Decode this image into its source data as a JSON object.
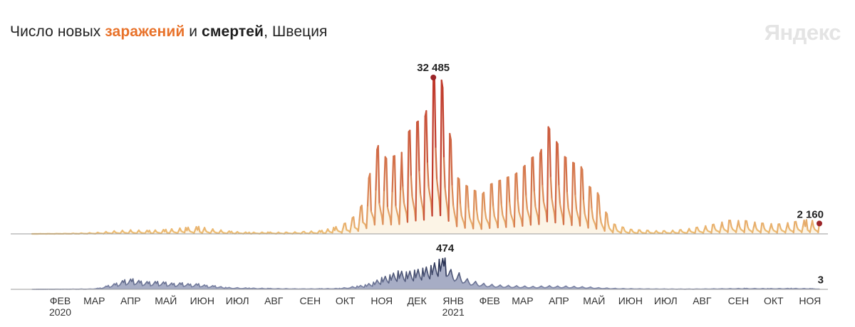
{
  "title": {
    "prefix": "Число новых ",
    "infections_word": "заражений",
    "middle": " и ",
    "deaths_word": "смертей",
    "suffix": ", Швеция"
  },
  "brand": "Яндекс",
  "colors": {
    "infections_low": "#eec277",
    "infections_high": "#c0392b",
    "deaths_low": "#8c94b5",
    "deaths_high": "#273052",
    "marker": "#9b2428",
    "baseline": "#9a9a9a",
    "axis_text": "#333333"
  },
  "chart_data": [
    {
      "type": "area",
      "title": "",
      "series": [
        {
          "name": "заражений",
          "weekly_peaks": [
            {
              "date": "2020-02-05",
              "value": 30
            },
            {
              "date": "2020-02-19",
              "value": 60
            },
            {
              "date": "2020-03-04",
              "value": 150
            },
            {
              "date": "2020-03-18",
              "value": 300
            },
            {
              "date": "2020-04-01",
              "value": 600
            },
            {
              "date": "2020-04-15",
              "value": 800
            },
            {
              "date": "2020-05-01",
              "value": 700
            },
            {
              "date": "2020-05-15",
              "value": 900
            },
            {
              "date": "2020-06-01",
              "value": 1300
            },
            {
              "date": "2020-06-12",
              "value": 1500
            },
            {
              "date": "2020-06-24",
              "value": 1000
            },
            {
              "date": "2020-07-10",
              "value": 500
            },
            {
              "date": "2020-07-25",
              "value": 300
            },
            {
              "date": "2020-08-10",
              "value": 350
            },
            {
              "date": "2020-08-25",
              "value": 300
            },
            {
              "date": "2020-09-10",
              "value": 450
            },
            {
              "date": "2020-09-25",
              "value": 700
            },
            {
              "date": "2020-10-05",
              "value": 1300
            },
            {
              "date": "2020-10-15",
              "value": 2200
            },
            {
              "date": "2020-10-22",
              "value": 3500
            },
            {
              "date": "2020-10-29",
              "value": 5900
            },
            {
              "date": "2020-11-05",
              "value": 12500
            },
            {
              "date": "2020-11-12",
              "value": 18300
            },
            {
              "date": "2020-11-19",
              "value": 15600
            },
            {
              "date": "2020-11-26",
              "value": 16200
            },
            {
              "date": "2020-12-02",
              "value": 16900
            },
            {
              "date": "2020-12-08",
              "value": 21200
            },
            {
              "date": "2020-12-15",
              "value": 23200
            },
            {
              "date": "2020-12-22",
              "value": 24400
            },
            {
              "date": "2020-12-29",
              "value": 32485
            },
            {
              "date": "2021-01-05",
              "value": 31900
            },
            {
              "date": "2021-01-12",
              "value": 20800
            },
            {
              "date": "2021-01-19",
              "value": 11600
            },
            {
              "date": "2021-01-26",
              "value": 10000
            },
            {
              "date": "2021-02-02",
              "value": 9000
            },
            {
              "date": "2021-02-09",
              "value": 8300
            },
            {
              "date": "2021-02-16",
              "value": 10300
            },
            {
              "date": "2021-02-23",
              "value": 11000
            },
            {
              "date": "2021-03-02",
              "value": 11700
            },
            {
              "date": "2021-03-09",
              "value": 12400
            },
            {
              "date": "2021-03-16",
              "value": 13900
            },
            {
              "date": "2021-03-23",
              "value": 15800
            },
            {
              "date": "2021-03-30",
              "value": 16700
            },
            {
              "date": "2021-04-06",
              "value": 22200
            },
            {
              "date": "2021-04-13",
              "value": 19100
            },
            {
              "date": "2021-04-20",
              "value": 16000
            },
            {
              "date": "2021-04-27",
              "value": 14800
            },
            {
              "date": "2021-05-04",
              "value": 13900
            },
            {
              "date": "2021-05-11",
              "value": 9800
            },
            {
              "date": "2021-05-18",
              "value": 8500
            },
            {
              "date": "2021-05-25",
              "value": 4500
            },
            {
              "date": "2021-06-01",
              "value": 2000
            },
            {
              "date": "2021-06-08",
              "value": 1400
            },
            {
              "date": "2021-06-15",
              "value": 900
            },
            {
              "date": "2021-06-22",
              "value": 800
            },
            {
              "date": "2021-06-29",
              "value": 700
            },
            {
              "date": "2021-07-13",
              "value": 600
            },
            {
              "date": "2021-07-27",
              "value": 800
            },
            {
              "date": "2021-08-10",
              "value": 1300
            },
            {
              "date": "2021-08-24",
              "value": 1900
            },
            {
              "date": "2021-09-07",
              "value": 2800
            },
            {
              "date": "2021-09-21",
              "value": 2700
            },
            {
              "date": "2021-10-05",
              "value": 2200
            },
            {
              "date": "2021-10-19",
              "value": 2000
            },
            {
              "date": "2021-11-02",
              "value": 2500
            },
            {
              "date": "2021-11-12",
              "value": 2900
            },
            {
              "date": "2021-11-23",
              "value": 2600
            }
          ],
          "last_value": 2160
        }
      ],
      "annotations": [
        {
          "date": "2020-12-29",
          "value": 32485,
          "label": "32 485"
        },
        {
          "date": "2021-11-23",
          "value": 2160,
          "label": "2 160"
        }
      ],
      "ylim": [
        0,
        32485
      ]
    },
    {
      "type": "area",
      "title": "",
      "series": [
        {
          "name": "смертей",
          "weekly_peaks": [
            {
              "date": "2020-03-12",
              "value": 5
            },
            {
              "date": "2020-03-20",
              "value": 20
            },
            {
              "date": "2020-03-27",
              "value": 60
            },
            {
              "date": "2020-04-03",
              "value": 95
            },
            {
              "date": "2020-04-10",
              "value": 145
            },
            {
              "date": "2020-04-17",
              "value": 160
            },
            {
              "date": "2020-04-24",
              "value": 125
            },
            {
              "date": "2020-05-01",
              "value": 115
            },
            {
              "date": "2020-05-08",
              "value": 120
            },
            {
              "date": "2020-05-15",
              "value": 110
            },
            {
              "date": "2020-05-22",
              "value": 90
            },
            {
              "date": "2020-05-29",
              "value": 100
            },
            {
              "date": "2020-06-05",
              "value": 80
            },
            {
              "date": "2020-06-12",
              "value": 85
            },
            {
              "date": "2020-06-19",
              "value": 60
            },
            {
              "date": "2020-06-26",
              "value": 55
            },
            {
              "date": "2020-07-05",
              "value": 30
            },
            {
              "date": "2020-07-15",
              "value": 25
            },
            {
              "date": "2020-07-25",
              "value": 20
            },
            {
              "date": "2020-08-10",
              "value": 15
            },
            {
              "date": "2020-08-25",
              "value": 10
            },
            {
              "date": "2020-09-10",
              "value": 8
            },
            {
              "date": "2020-09-25",
              "value": 10
            },
            {
              "date": "2020-10-10",
              "value": 15
            },
            {
              "date": "2020-10-25",
              "value": 50
            },
            {
              "date": "2020-11-01",
              "value": 70
            },
            {
              "date": "2020-11-08",
              "value": 110
            },
            {
              "date": "2020-11-15",
              "value": 180
            },
            {
              "date": "2020-11-22",
              "value": 220
            },
            {
              "date": "2020-11-29",
              "value": 280
            },
            {
              "date": "2020-12-06",
              "value": 265
            },
            {
              "date": "2020-12-13",
              "value": 290
            },
            {
              "date": "2020-12-20",
              "value": 320
            },
            {
              "date": "2020-12-27",
              "value": 360
            },
            {
              "date": "2021-01-03",
              "value": 455
            },
            {
              "date": "2021-01-08",
              "value": 474
            },
            {
              "date": "2021-01-13",
              "value": 300
            },
            {
              "date": "2021-01-20",
              "value": 250
            },
            {
              "date": "2021-01-27",
              "value": 160
            },
            {
              "date": "2021-02-03",
              "value": 120
            },
            {
              "date": "2021-02-10",
              "value": 90
            },
            {
              "date": "2021-02-17",
              "value": 75
            },
            {
              "date": "2021-02-24",
              "value": 65
            },
            {
              "date": "2021-03-03",
              "value": 60
            },
            {
              "date": "2021-03-10",
              "value": 55
            },
            {
              "date": "2021-03-17",
              "value": 50
            },
            {
              "date": "2021-03-24",
              "value": 45
            },
            {
              "date": "2021-03-31",
              "value": 50
            },
            {
              "date": "2021-04-07",
              "value": 55
            },
            {
              "date": "2021-04-14",
              "value": 50
            },
            {
              "date": "2021-04-21",
              "value": 50
            },
            {
              "date": "2021-04-28",
              "value": 45
            },
            {
              "date": "2021-05-05",
              "value": 40
            },
            {
              "date": "2021-05-12",
              "value": 35
            },
            {
              "date": "2021-05-19",
              "value": 25
            },
            {
              "date": "2021-05-26",
              "value": 20
            },
            {
              "date": "2021-06-02",
              "value": 15
            },
            {
              "date": "2021-06-15",
              "value": 10
            },
            {
              "date": "2021-07-01",
              "value": 7
            },
            {
              "date": "2021-07-20",
              "value": 5
            },
            {
              "date": "2021-08-10",
              "value": 5
            },
            {
              "date": "2021-09-01",
              "value": 10
            },
            {
              "date": "2021-09-20",
              "value": 15
            },
            {
              "date": "2021-10-10",
              "value": 12
            },
            {
              "date": "2021-10-30",
              "value": 15
            },
            {
              "date": "2021-11-15",
              "value": 12
            },
            {
              "date": "2021-11-23",
              "value": 5
            }
          ],
          "last_value": 3
        }
      ],
      "annotations": [
        {
          "date": "2021-01-08",
          "value": 474,
          "label": "474"
        },
        {
          "date": "2021-11-23",
          "value": 3,
          "label": "3"
        }
      ],
      "ylim": [
        0,
        474
      ]
    }
  ],
  "x_axis": {
    "range": [
      "2020-01-22",
      "2021-11-23"
    ],
    "ticks": [
      {
        "date": "2020-02-15",
        "label": "ФЕВ",
        "sublabel": "2020"
      },
      {
        "date": "2020-03-15",
        "label": "МАР"
      },
      {
        "date": "2020-04-15",
        "label": "АПР"
      },
      {
        "date": "2020-05-15",
        "label": "МАЙ"
      },
      {
        "date": "2020-06-15",
        "label": "ИЮН"
      },
      {
        "date": "2020-07-15",
        "label": "ИЮЛ"
      },
      {
        "date": "2020-08-15",
        "label": "АВГ"
      },
      {
        "date": "2020-09-15",
        "label": "СЕН"
      },
      {
        "date": "2020-10-15",
        "label": "ОКТ"
      },
      {
        "date": "2020-11-15",
        "label": "НОЯ"
      },
      {
        "date": "2020-12-15",
        "label": "ДЕК"
      },
      {
        "date": "2021-01-15",
        "label": "ЯНВ",
        "sublabel": "2021"
      },
      {
        "date": "2021-02-15",
        "label": "ФЕВ"
      },
      {
        "date": "2021-03-15",
        "label": "МАР"
      },
      {
        "date": "2021-04-15",
        "label": "АПР"
      },
      {
        "date": "2021-05-15",
        "label": "МАЙ"
      },
      {
        "date": "2021-06-15",
        "label": "ИЮН"
      },
      {
        "date": "2021-07-15",
        "label": "ИЮЛ"
      },
      {
        "date": "2021-08-15",
        "label": "АВГ"
      },
      {
        "date": "2021-09-15",
        "label": "СЕН"
      },
      {
        "date": "2021-10-15",
        "label": "ОКТ"
      },
      {
        "date": "2021-11-15",
        "label": "НОЯ"
      }
    ]
  }
}
